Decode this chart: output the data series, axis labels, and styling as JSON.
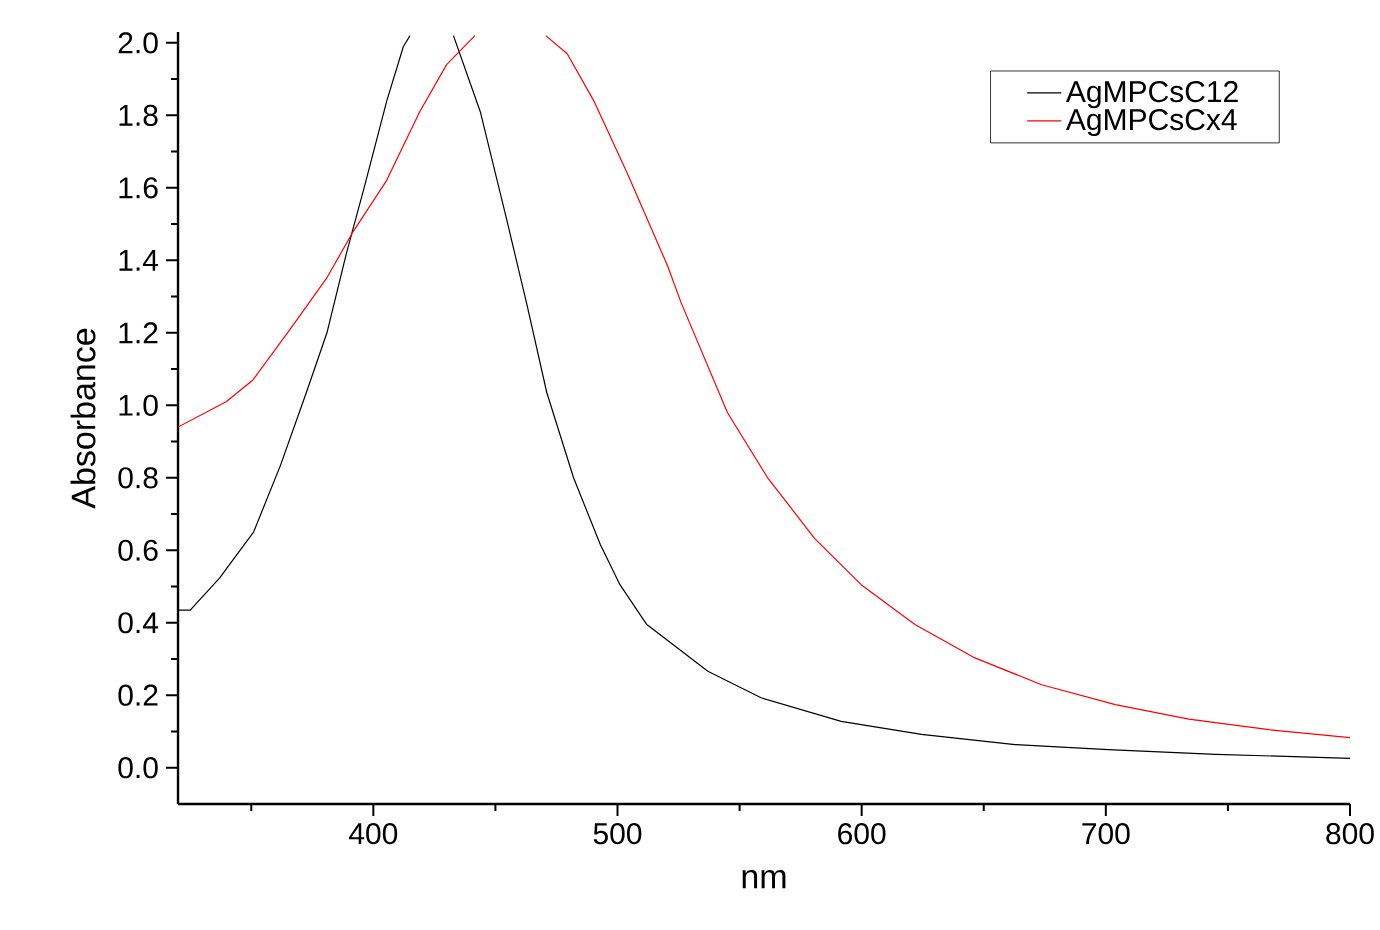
{
  "chart_data": {
    "type": "line",
    "xlabel": "nm",
    "ylabel": "Absorbance",
    "xlim": [
      320,
      800
    ],
    "ylim": [
      -0.1,
      2.03
    ],
    "xticks": [
      {
        "value": 350,
        "label": null
      },
      400,
      {
        "value": 450,
        "label": null
      },
      500,
      {
        "value": 550,
        "label": null
      },
      600,
      {
        "value": 650,
        "label": null
      },
      700,
      {
        "value": 750,
        "label": null
      },
      800
    ],
    "yticks": [
      {
        "value": 0,
        "label": "0.0"
      },
      {
        "value": 0.1,
        "label": null
      },
      0.2,
      {
        "value": 0.3,
        "label": null
      },
      0.4,
      {
        "value": 0.5,
        "label": null
      },
      0.6,
      {
        "value": 0.7,
        "label": null
      },
      0.8,
      {
        "value": 0.9,
        "label": null
      },
      {
        "value": 1,
        "label": "1.0"
      },
      {
        "value": 1.1,
        "label": null
      },
      1.2,
      {
        "value": 1.3,
        "label": null
      },
      1.4,
      {
        "value": 1.5,
        "label": null
      },
      1.6,
      {
        "value": 1.7,
        "label": null
      },
      1.8,
      {
        "value": 1.9,
        "label": null
      },
      {
        "value": 2,
        "label": "2.0"
      }
    ],
    "legend": "top right",
    "grid": false,
    "series": [
      {
        "name": "AgMPCsC12",
        "color": "#000000",
        "x": [
          320,
          325,
          337,
          351,
          362,
          372.6,
          381,
          389,
          397,
          405.5,
          412.3,
          415,
          424,
          432.8,
          443.8,
          454.7,
          463,
          471,
          482,
          493,
          501,
          512,
          537,
          558.8,
          591.6,
          624.5,
          662.8,
          701,
          745,
          800
        ],
        "values": [
          0.435,
          0.435,
          0.523,
          0.651,
          0.835,
          1.036,
          1.2,
          1.42,
          1.62,
          1.84,
          1.99,
          2.02,
          null,
          2.02,
          1.81,
          1.51,
          1.275,
          1.036,
          0.8,
          0.615,
          0.505,
          0.395,
          0.266,
          0.193,
          0.128,
          0.092,
          0.064,
          0.05,
          0.037,
          0.026
        ]
      },
      {
        "name": "AgMPCsCx4",
        "color": "#ff0000",
        "x": [
          320,
          339.7,
          350.7,
          367,
          380.8,
          391.8,
          405.4,
          419,
          430,
          441.6,
          456,
          470.6,
          479.4,
          490.3,
          504,
          520.5,
          526,
          545,
          561.5,
          580.7,
          599.8,
          621.8,
          646.4,
          673.7,
          703.9,
          734,
          766.8,
          800
        ],
        "values": [
          0.94,
          1.01,
          1.07,
          1.22,
          1.35,
          1.48,
          1.62,
          1.81,
          1.94,
          2.02,
          null,
          2.02,
          1.97,
          1.84,
          1.64,
          1.385,
          1.284,
          0.98,
          0.8,
          0.633,
          0.505,
          0.395,
          0.303,
          0.229,
          0.174,
          0.134,
          0.105,
          0.083
        ]
      }
    ]
  }
}
